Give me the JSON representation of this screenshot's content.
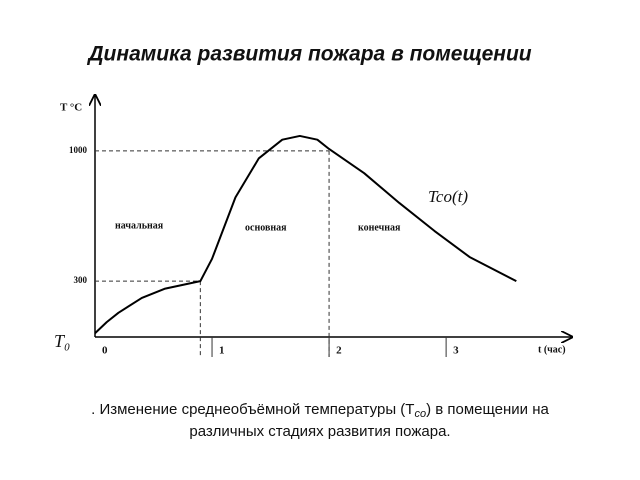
{
  "chart_data": {
    "type": "line",
    "title": "Динамика развития пожара в помещении",
    "ylabel": "T °C",
    "xlabel": "t (час)",
    "origin_label": "T₀",
    "stages": [
      "начальная",
      "основная",
      "конечная"
    ],
    "caption": [
      ". Изменение среднеобъёмной температуры (T",
      "co",
      ") в помещении на",
      "различных стадиях развития пожара."
    ],
    "xlim": [
      0,
      4.05
    ],
    "ylim": [
      0,
      1300
    ],
    "xticks": [
      0,
      1,
      2,
      3
    ],
    "yticks": [
      300,
      1000
    ],
    "dividers": [
      0.9,
      2
    ],
    "x": [
      0,
      0.1,
      0.2,
      0.4,
      0.6,
      0.9,
      1.0,
      1.2,
      1.4,
      1.6,
      1.75,
      1.9,
      2.0,
      2.3,
      2.6,
      2.9,
      3.2,
      3.6
    ],
    "series": [
      {
        "name": "Tco(t)",
        "color": "#000000",
        "values": [
          20,
          80,
          130,
          210,
          260,
          300,
          420,
          750,
          960,
          1060,
          1080,
          1060,
          1010,
          880,
          720,
          570,
          430,
          300
        ]
      }
    ]
  }
}
